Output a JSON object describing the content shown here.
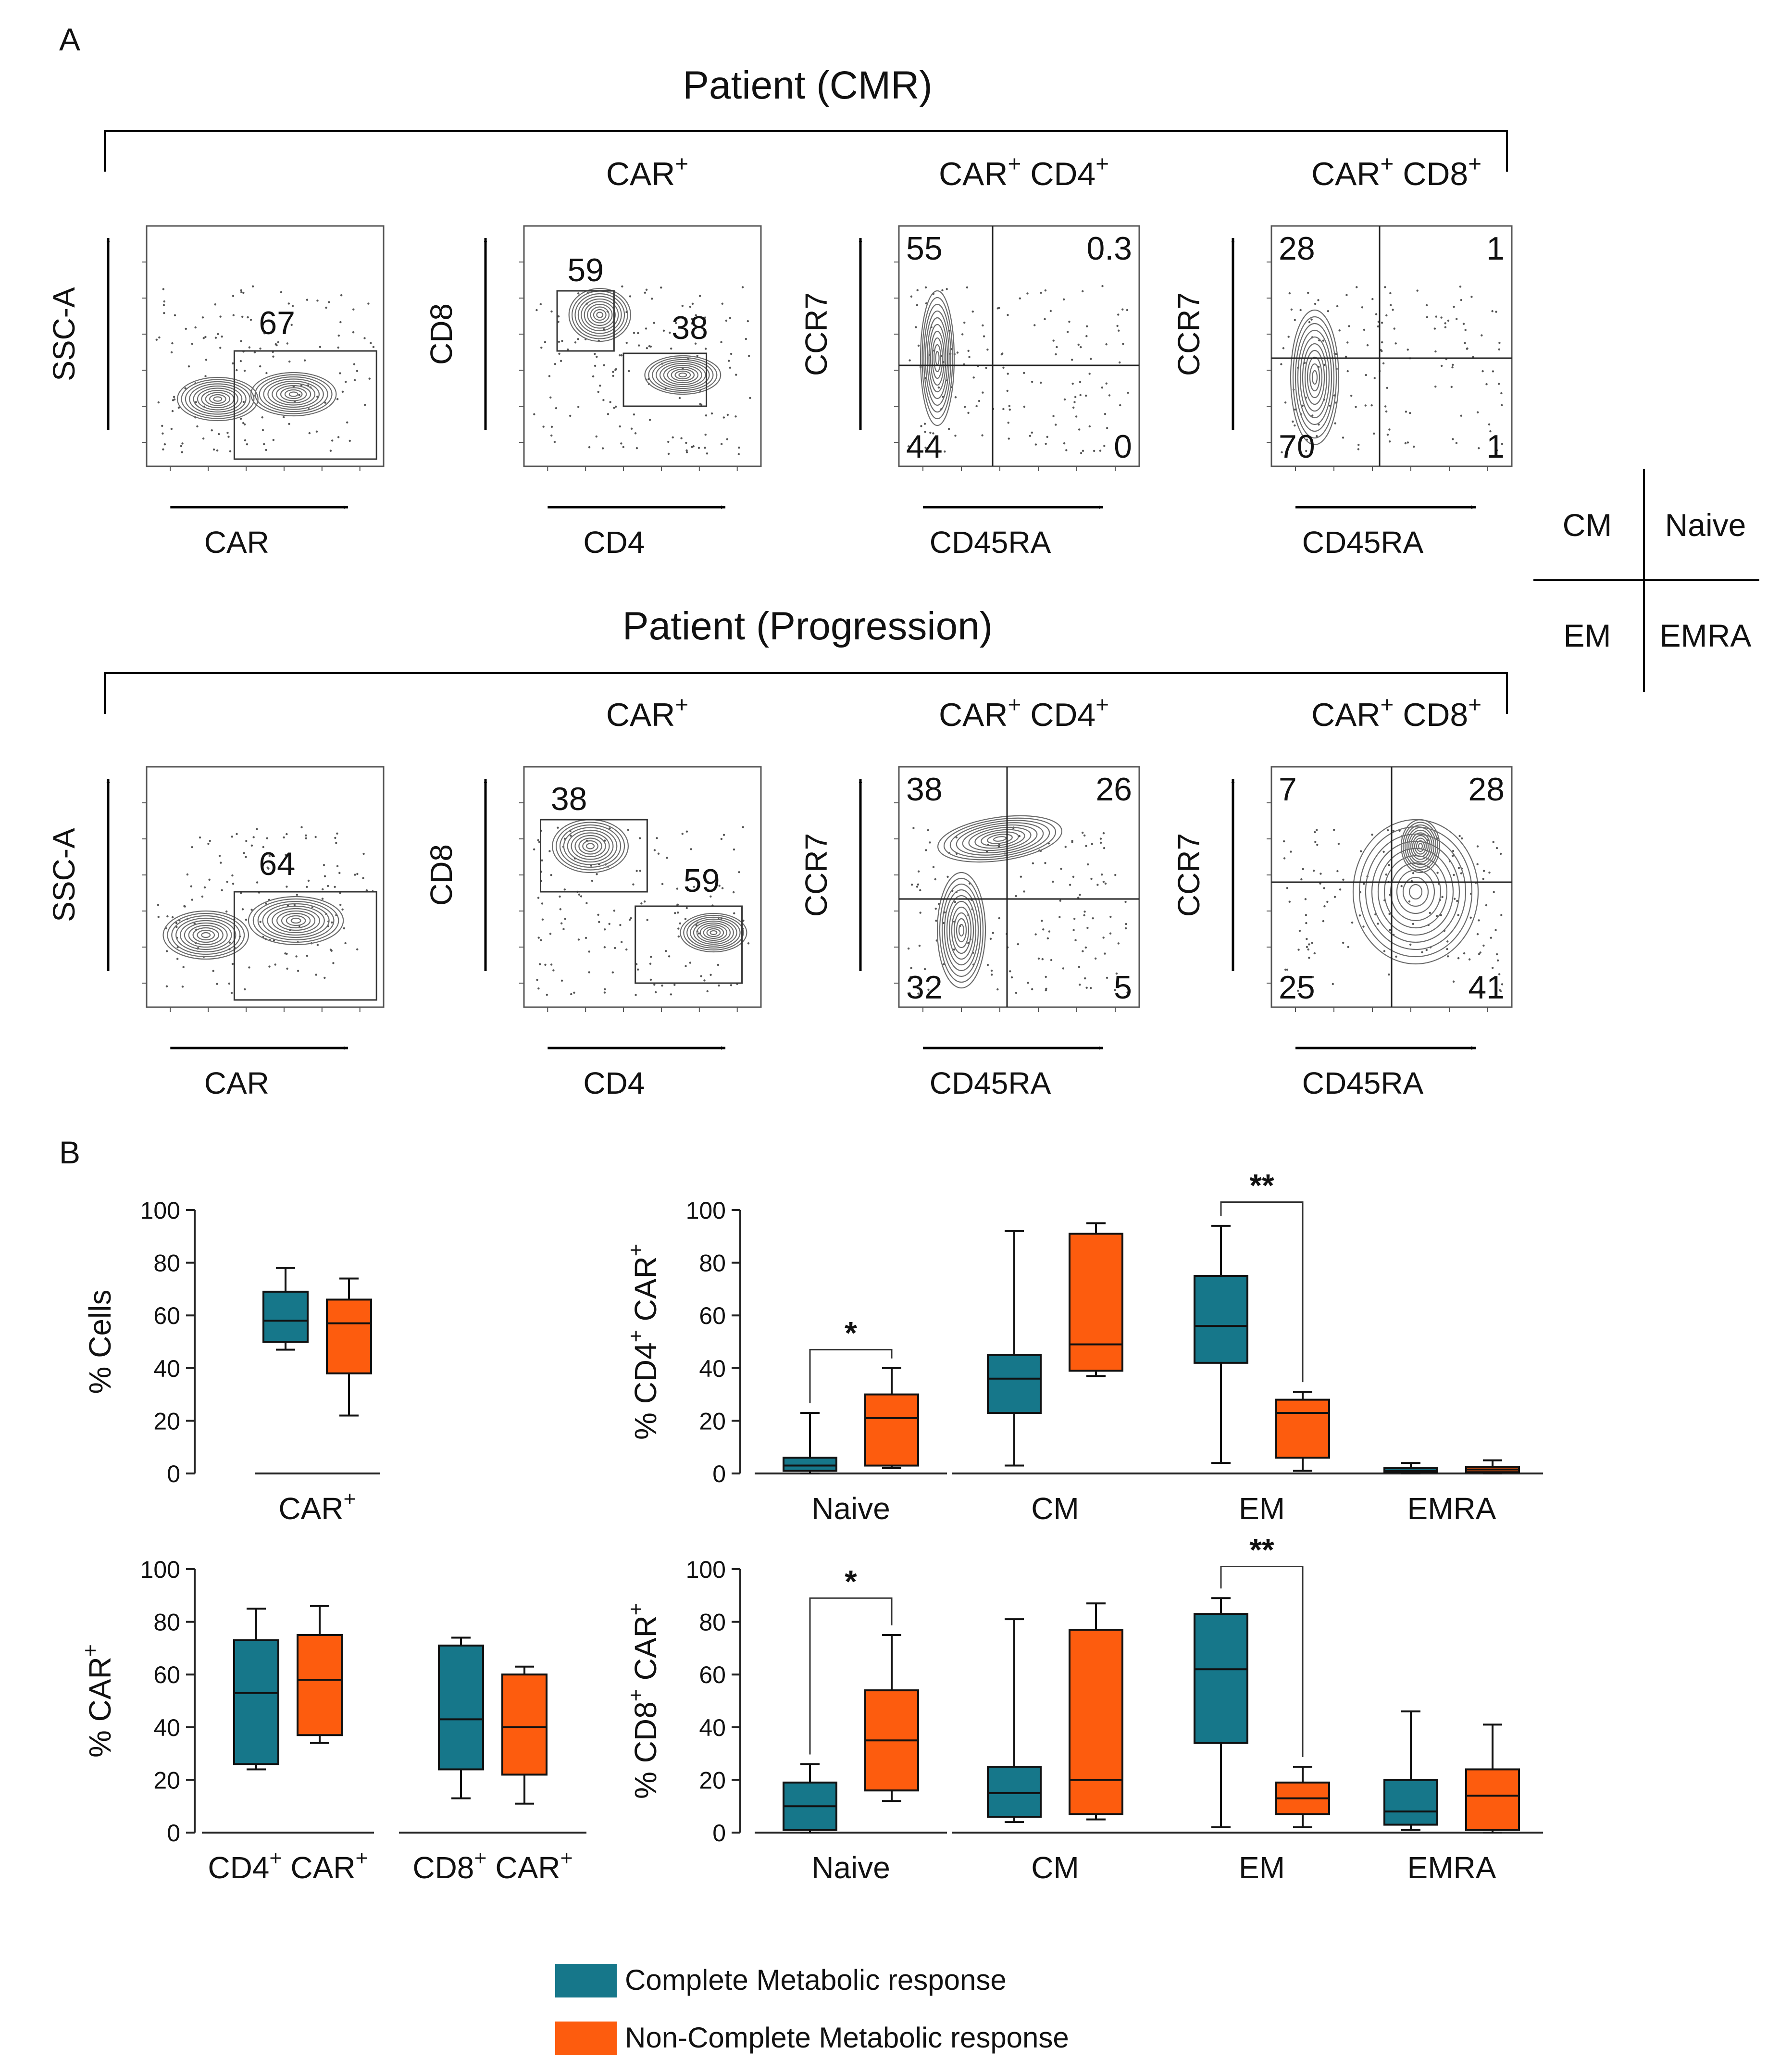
{
  "panel_letters": {
    "a": "A",
    "b": "B"
  },
  "colors": {
    "cmr": "#16778a",
    "ncmr": "#fd5c0e",
    "axis": "#222222",
    "contour": "#6b6b6b"
  },
  "gate_key": {
    "top_left": "CM",
    "top_right": "Naive",
    "bottom_left": "EM",
    "bottom_right": "EMRA"
  },
  "groups": [
    {
      "title": "Patient (CMR)",
      "plots": [
        {
          "header": "",
          "xlabel": "CAR",
          "ylabel": "SSC-A",
          "gate_value": "67"
        },
        {
          "header": "CAR+",
          "xlabel": "CD4",
          "ylabel": "CD8",
          "gate_cd8": "59",
          "gate_cd4": "38"
        },
        {
          "header": "CAR+ CD4+",
          "xlabel": "CD45RA",
          "ylabel": "CCR7",
          "q_tl": "55",
          "q_tr": "0.3",
          "q_bl": "44",
          "q_br": "0"
        },
        {
          "header": "CAR+ CD8+",
          "xlabel": "CD45RA",
          "ylabel": "CCR7",
          "q_tl": "28",
          "q_tr": "1",
          "q_bl": "70",
          "q_br": "1"
        }
      ]
    },
    {
      "title": "Patient (Progression)",
      "plots": [
        {
          "header": "",
          "xlabel": "CAR",
          "ylabel": "SSC-A",
          "gate_value": "64"
        },
        {
          "header": "CAR+",
          "xlabel": "CD4",
          "ylabel": "CD8",
          "gate_cd8": "38",
          "gate_cd4": "59"
        },
        {
          "header": "CAR+ CD4+",
          "xlabel": "CD45RA",
          "ylabel": "CCR7",
          "q_tl": "38",
          "q_tr": "26",
          "q_bl": "32",
          "q_br": "5"
        },
        {
          "header": "CAR+ CD8+",
          "xlabel": "CD45RA",
          "ylabel": "CCR7",
          "q_tl": "7",
          "q_tr": "28",
          "q_bl": "25",
          "q_br": "41"
        }
      ]
    }
  ],
  "legend": [
    {
      "label": "Complete Metabolic response",
      "color": "#16778a"
    },
    {
      "label": "Non-Complete Metabolic response",
      "color": "#fd5c0e"
    }
  ],
  "chart_data": [
    {
      "type": "box",
      "id": "cells",
      "ylabel": "% Cells",
      "ylim": [
        0,
        100
      ],
      "yticks": [
        0,
        20,
        40,
        60,
        80,
        100
      ],
      "categories": [
        "CAR+"
      ],
      "series": [
        {
          "name": "Complete Metabolic response",
          "boxes": [
            {
              "min": 47,
              "q1": 50,
              "median": 58,
              "q3": 69,
              "max": 78
            }
          ]
        },
        {
          "name": "Non-Complete Metabolic response",
          "boxes": [
            {
              "min": 22,
              "q1": 38,
              "median": 57,
              "q3": 66,
              "max": 74
            }
          ]
        }
      ],
      "significance": []
    },
    {
      "type": "box",
      "id": "car",
      "ylabel": "% CAR+",
      "ylim": [
        0,
        100
      ],
      "yticks": [
        0,
        20,
        40,
        60,
        80,
        100
      ],
      "categories": [
        "CD4+ CAR+",
        "CD8+ CAR+"
      ],
      "series": [
        {
          "name": "Complete Metabolic response",
          "boxes": [
            {
              "min": 24,
              "q1": 26,
              "median": 53,
              "q3": 73,
              "max": 85
            },
            {
              "min": 13,
              "q1": 24,
              "median": 43,
              "q3": 71,
              "max": 74
            }
          ]
        },
        {
          "name": "Non-Complete Metabolic response",
          "boxes": [
            {
              "min": 34,
              "q1": 37,
              "median": 58,
              "q3": 75,
              "max": 86
            },
            {
              "min": 11,
              "q1": 22,
              "median": 40,
              "q3": 60,
              "max": 63
            }
          ]
        }
      ],
      "significance": []
    },
    {
      "type": "box",
      "id": "cd4",
      "ylabel": "% CD4+ CAR+",
      "ylim": [
        0,
        100
      ],
      "yticks": [
        0,
        20,
        40,
        60,
        80,
        100
      ],
      "categories": [
        "Naive",
        "CM",
        "EM",
        "EMRA"
      ],
      "series": [
        {
          "name": "Complete Metabolic response",
          "boxes": [
            {
              "min": 0,
              "q1": 1,
              "median": 3,
              "q3": 6,
              "max": 23
            },
            {
              "min": 3,
              "q1": 23,
              "median": 36,
              "q3": 45,
              "max": 92
            },
            {
              "min": 4,
              "q1": 42,
              "median": 56,
              "q3": 75,
              "max": 94
            },
            {
              "min": 0,
              "q1": 0.5,
              "median": 1,
              "q3": 2,
              "max": 4
            }
          ]
        },
        {
          "name": "Non-Complete Metabolic response",
          "boxes": [
            {
              "min": 2,
              "q1": 3,
              "median": 21,
              "q3": 30,
              "max": 40
            },
            {
              "min": 37,
              "q1": 39,
              "median": 49,
              "q3": 91,
              "max": 95
            },
            {
              "min": 1,
              "q1": 6,
              "median": 23,
              "q3": 28,
              "max": 31
            },
            {
              "min": 0,
              "q1": 0.5,
              "median": 1.5,
              "q3": 2.5,
              "max": 5
            }
          ]
        }
      ],
      "significance": [
        {
          "category": "Naive",
          "label": "*",
          "level": 47
        },
        {
          "category": "EM",
          "label": "**",
          "level": 103
        }
      ]
    },
    {
      "type": "box",
      "id": "cd8",
      "ylabel": "% CD8+ CAR+",
      "ylim": [
        0,
        100
      ],
      "yticks": [
        0,
        20,
        40,
        60,
        80,
        100
      ],
      "categories": [
        "Naive",
        "CM",
        "EM",
        "EMRA"
      ],
      "series": [
        {
          "name": "Complete Metabolic response",
          "boxes": [
            {
              "min": 0,
              "q1": 1,
              "median": 10,
              "q3": 19,
              "max": 26
            },
            {
              "min": 4,
              "q1": 6,
              "median": 15,
              "q3": 25,
              "max": 81
            },
            {
              "min": 2,
              "q1": 34,
              "median": 62,
              "q3": 83,
              "max": 89
            },
            {
              "min": 1,
              "q1": 3,
              "median": 8,
              "q3": 20,
              "max": 46
            }
          ]
        },
        {
          "name": "Non-Complete Metabolic response",
          "boxes": [
            {
              "min": 12,
              "q1": 16,
              "median": 35,
              "q3": 54,
              "max": 75
            },
            {
              "min": 5,
              "q1": 7,
              "median": 20,
              "q3": 77,
              "max": 87
            },
            {
              "min": 2,
              "q1": 7,
              "median": 13,
              "q3": 19,
              "max": 25
            },
            {
              "min": 0,
              "q1": 1,
              "median": 14,
              "q3": 24,
              "max": 41
            }
          ]
        }
      ],
      "significance": [
        {
          "category": "Naive",
          "label": "*",
          "level": 89
        },
        {
          "category": "EM",
          "label": "**",
          "level": 101
        }
      ]
    }
  ]
}
